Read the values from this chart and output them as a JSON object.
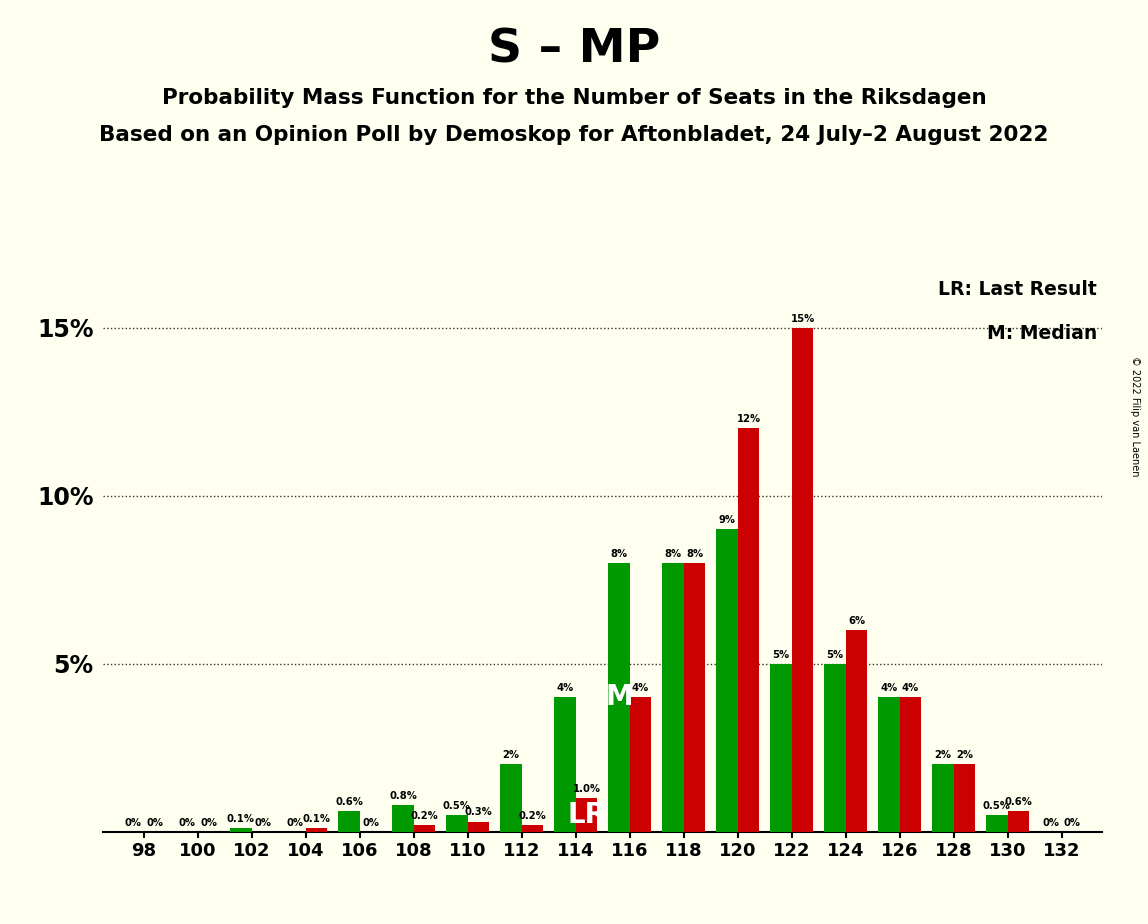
{
  "title": "S – MP",
  "subtitle1": "Probability Mass Function for the Number of Seats in the Riksdagen",
  "subtitle2": "Based on an Opinion Poll by Demoskop for Aftonbladet, 24 July–2 August 2022",
  "copyright": "© 2022 Filip van Laenen",
  "lr_label": "LR: Last Result",
  "m_label": "M: Median",
  "seats": [
    98,
    100,
    102,
    104,
    106,
    108,
    110,
    112,
    114,
    116,
    118,
    120,
    122,
    124,
    126,
    128,
    130,
    132
  ],
  "red_values": [
    0.0,
    0.0,
    0.0,
    0.1,
    0.0,
    0.2,
    0.3,
    0.2,
    1.0,
    4.0,
    8.0,
    12.0,
    15.0,
    6.0,
    4.0,
    2.0,
    0.6,
    0.0
  ],
  "green_values": [
    0.0,
    0.0,
    0.1,
    0.0,
    0.6,
    0.8,
    0.5,
    2.0,
    4.0,
    8.0,
    8.0,
    9.0,
    5.0,
    5.0,
    4.0,
    2.0,
    0.5,
    0.0
  ],
  "red_labels": [
    "0%",
    "0%",
    "0%",
    "0.1%",
    "0%",
    "0.2%",
    "0.3%",
    "0.2%",
    "1.0%",
    "4%",
    "8%",
    "12%",
    "15%",
    "6%",
    "4%",
    "2%",
    "0.6%",
    "0%"
  ],
  "green_labels": [
    "0%",
    "0%",
    "0.1%",
    "0%",
    "0.6%",
    "0.8%",
    "0.5%",
    "2%",
    "4%",
    "8%",
    "8%",
    "9%",
    "5%",
    "5%",
    "4%",
    "2%",
    "0.5%",
    "0%"
  ],
  "red_color": "#cc0000",
  "green_color": "#009900",
  "bg_color": "#fffff0",
  "ylim": [
    0,
    16.5
  ],
  "yticks": [
    5,
    10,
    15
  ],
  "ytick_labels": [
    "5%",
    "10%",
    "15%"
  ],
  "lr_annotation": "LR",
  "m_annotation": "M",
  "lr_bar_idx": 8,
  "lr_bar_side": "red",
  "m_bar_idx": 9,
  "m_bar_side": "green"
}
